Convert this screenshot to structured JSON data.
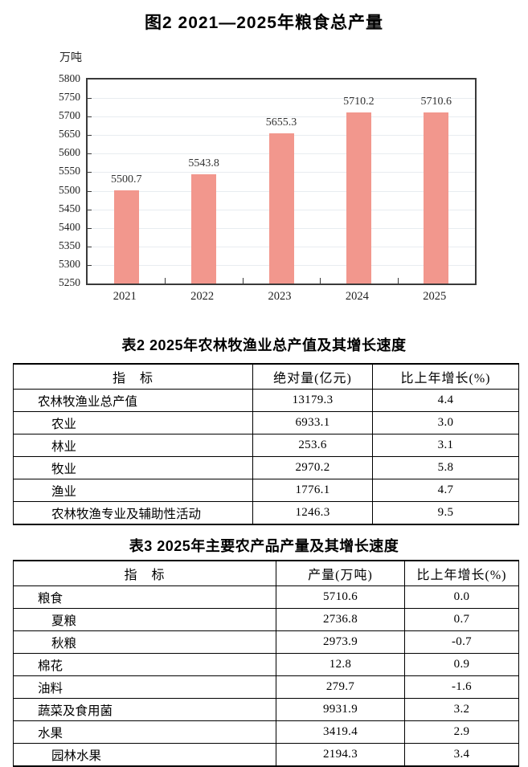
{
  "chart_data": {
    "type": "bar",
    "title": "图2 2021—2025年粮食总产量",
    "unit": "万吨",
    "categories": [
      "2021",
      "2022",
      "2023",
      "2024",
      "2025"
    ],
    "values": [
      5500.7,
      5543.8,
      5655.3,
      5710.2,
      5710.6
    ],
    "data_labels": [
      "5500.7",
      "5543.8",
      "5655.3",
      "5710.2",
      "5710.6"
    ],
    "ylim": [
      5250,
      5800
    ],
    "ytick_step": 50,
    "grid": true,
    "legend": "none",
    "bar_color": "#F2978D",
    "grid_color": "#e8ecf0",
    "axis_color": "#3a3a3a"
  },
  "table2": {
    "title": "表2 2025年农林牧渔业总产值及其增长速度",
    "headers": [
      "指　标",
      "绝对量(亿元)",
      "比上年增长(%)"
    ],
    "rows": [
      {
        "label": "农林牧渔业总产值",
        "indent": 1,
        "value": "13179.3",
        "growth": "4.4"
      },
      {
        "label": "农业",
        "indent": 2,
        "value": "6933.1",
        "growth": "3.0"
      },
      {
        "label": "林业",
        "indent": 2,
        "value": "253.6",
        "growth": "3.1"
      },
      {
        "label": "牧业",
        "indent": 2,
        "value": "2970.2",
        "growth": "5.8"
      },
      {
        "label": "渔业",
        "indent": 2,
        "value": "1776.1",
        "growth": "4.7"
      },
      {
        "label": "农林牧渔专业及辅助性活动",
        "indent": 2,
        "value": "1246.3",
        "growth": "9.5"
      }
    ]
  },
  "table3": {
    "title": "表3 2025年主要农产品产量及其增长速度",
    "headers": [
      "指　标",
      "产量(万吨)",
      "比上年增长(%)"
    ],
    "rows": [
      {
        "label": "粮食",
        "indent": 1,
        "value": "5710.6",
        "growth": "0.0"
      },
      {
        "label": "夏粮",
        "indent": 2,
        "value": "2736.8",
        "growth": "0.7"
      },
      {
        "label": "秋粮",
        "indent": 2,
        "value": "2973.9",
        "growth": "-0.7"
      },
      {
        "label": "棉花",
        "indent": 1,
        "value": "12.8",
        "growth": "0.9"
      },
      {
        "label": "油料",
        "indent": 1,
        "value": "279.7",
        "growth": "-1.6"
      },
      {
        "label": "蔬菜及食用菌",
        "indent": 1,
        "value": "9931.9",
        "growth": "3.2"
      },
      {
        "label": "水果",
        "indent": 1,
        "value": "3419.4",
        "growth": "2.9"
      },
      {
        "label": "园林水果",
        "indent": 2,
        "value": "2194.3",
        "growth": "3.4"
      }
    ]
  }
}
